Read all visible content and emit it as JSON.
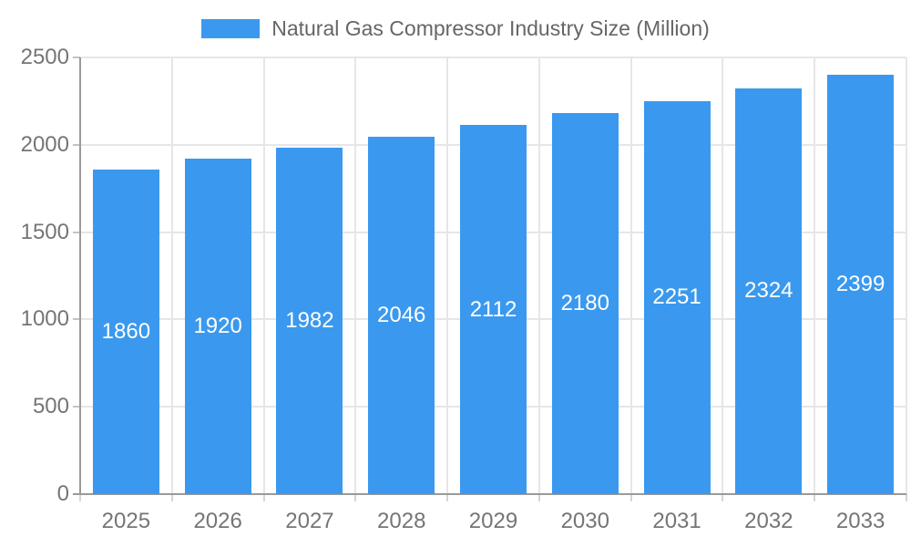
{
  "chart_data": {
    "type": "bar",
    "title": "Natural Gas Compressor Industry Size (Million)",
    "categories": [
      "2025",
      "2026",
      "2027",
      "2028",
      "2029",
      "2030",
      "2031",
      "2032",
      "2033"
    ],
    "values": [
      1860,
      1920,
      1982,
      2046,
      2112,
      2180,
      2251,
      2324,
      2399
    ],
    "series_name": "Natural Gas Compressor Industry Size (Million)",
    "xlabel": "",
    "ylabel": "",
    "ylim": [
      0,
      2500
    ],
    "yticks": [
      0,
      500,
      1000,
      1500,
      2000,
      2500
    ],
    "grid": true,
    "legend_position": "top",
    "bar_color": "#3a99ee",
    "bar_value_label_color": "#ffffff",
    "axis_text_color": "#757575",
    "legend_text_color": "#666666",
    "gridline_color": "#e6e6e6",
    "axis_line_color": "#9a9a9a"
  }
}
